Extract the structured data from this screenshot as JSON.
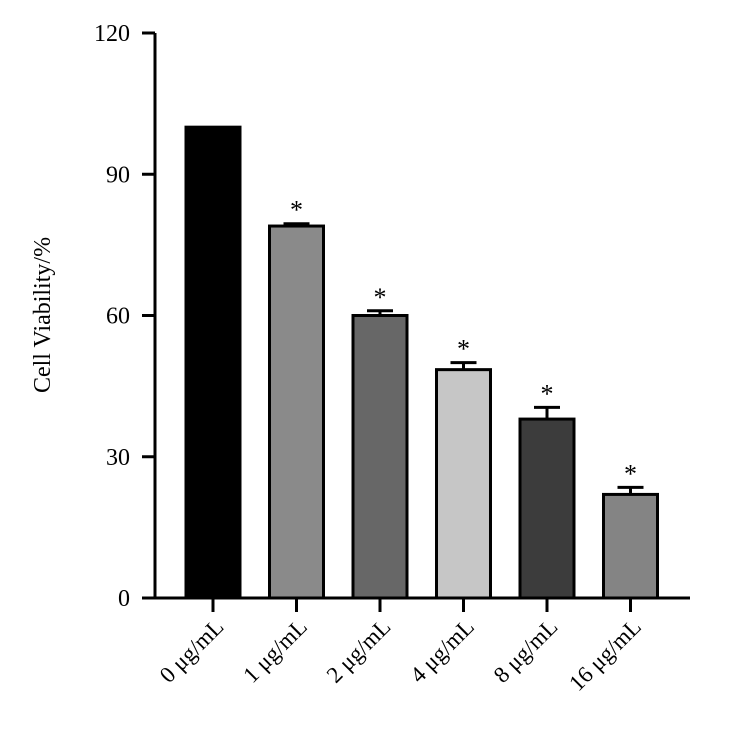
{
  "chart_data": {
    "type": "bar",
    "title": "",
    "xlabel": "",
    "ylabel": "Cell Viability/%",
    "ylim": [
      0,
      120
    ],
    "yticks": [
      0,
      30,
      60,
      90,
      120
    ],
    "grid": false,
    "legend": "none",
    "categories": [
      "0 μg/mL",
      "1 μg/mL",
      "2 μg/mL",
      "4 μg/mL",
      "8 μg/mL",
      "16 μg/mL"
    ],
    "values": [
      100,
      79,
      60,
      48.5,
      38,
      22
    ],
    "errors": [
      0,
      0.5,
      1,
      1.5,
      2.5,
      1.5
    ],
    "significance": [
      "",
      "*",
      "*",
      "*",
      "*",
      "*"
    ],
    "bar_colors": [
      "#000000",
      "#8a8a8a",
      "#676767",
      "#c6c6c6",
      "#3c3c3c",
      "#848484"
    ]
  }
}
